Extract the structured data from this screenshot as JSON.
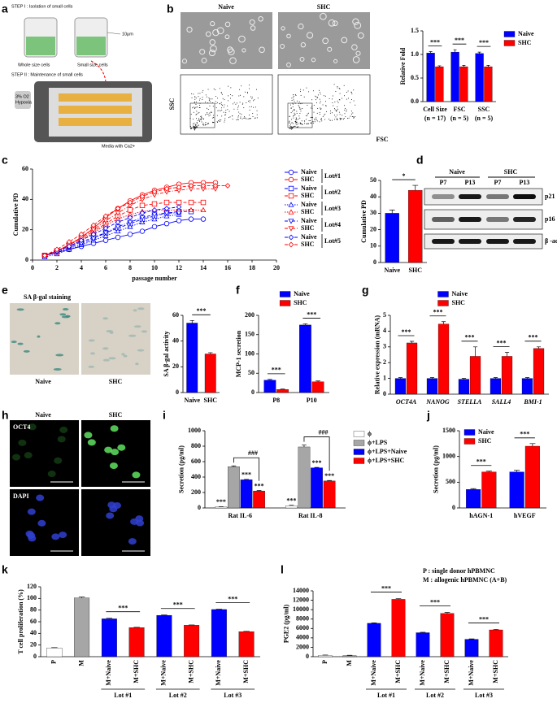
{
  "panel_labels": [
    "a",
    "b",
    "c",
    "d",
    "e",
    "f",
    "g",
    "h",
    "i",
    "j",
    "k",
    "l"
  ],
  "panel_a": {
    "step1": "STEP I : Isolation of small cells",
    "whole": "Whole size cells",
    "small": "Small size cells",
    "scale": "10μm",
    "step2": "STEP II : Maintenance of small cells",
    "o2": "3% O2",
    "hypoxia": "Hypoxia",
    "media": "Media with Ca2+"
  },
  "panel_b": {
    "naive": "Naive",
    "shc": "SHC",
    "ssc": "SSC",
    "fsc": "FSC"
  },
  "panel_d": {
    "naive": "Naive",
    "shc": "SHC",
    "passages": [
      "P7",
      "P13",
      "P7",
      "P13"
    ],
    "bands": [
      "p21",
      "p16",
      "β -actin"
    ]
  },
  "panel_e": {
    "title": "SA β-gal staining",
    "naive": "Naive",
    "shc": "SHC"
  },
  "panel_h": {
    "naive": "Naive",
    "shc": "SHC",
    "rows": [
      "OCT4",
      "DAPI"
    ]
  },
  "chart_data": [
    {
      "type": "bar",
      "categories": [
        "Cell Size",
        "FSC",
        "SSC"
      ],
      "category_sublabels": [
        "(n = 17)",
        "(n = 5)",
        "(n = 5)"
      ],
      "ylabel": "Relative Fold",
      "ylim": [
        0,
        1.5
      ],
      "yticks": [
        {
          "value": 0,
          "label": "0.0"
        },
        0.5,
        {
          "value": 1,
          "label": "1.0"
        },
        1.5
      ],
      "series": [
        {
          "name": "Naive",
          "color": "#0000ff",
          "values": [
            1.03,
            1.05,
            1.02
          ],
          "errors": [
            0.03,
            0.05,
            0.03
          ]
        },
        {
          "name": "SHC",
          "color": "#ff0000",
          "values": [
            0.74,
            0.74,
            0.74
          ],
          "errors": [
            0.02,
            0.03,
            0.03
          ]
        }
      ],
      "annotations": [
        "***",
        "***",
        "***"
      ],
      "legend": "right"
    },
    {
      "type": "line",
      "xlabel": "passage number",
      "ylabel": "Cumulative PD",
      "xlim": [
        0,
        20
      ],
      "xticks": [
        0,
        2,
        4,
        6,
        8,
        10,
        12,
        14,
        16,
        18,
        20
      ],
      "ylim": [
        0,
        60
      ],
      "yticks": [
        0,
        20,
        40,
        60
      ],
      "lot_labels": [
        "Lot#1",
        "Lot#2",
        "Lot#3",
        "Lot#4",
        "Lot#5"
      ],
      "legend": "right",
      "series": [
        {
          "name": "Naive",
          "color": "#0000ff",
          "linestyle": "solid",
          "marker": "circle",
          "x": [
            1,
            2,
            3,
            4,
            5,
            6,
            7,
            8,
            9,
            10,
            11,
            12,
            13,
            14
          ],
          "values": [
            3,
            5,
            7,
            9,
            11,
            13,
            15,
            17,
            19,
            22,
            24,
            26,
            27,
            27
          ]
        },
        {
          "name": "SHC",
          "color": "#ff0000",
          "linestyle": "solid",
          "marker": "circle",
          "x": [
            1,
            2,
            3,
            4,
            5,
            6,
            7,
            8,
            9,
            10,
            11,
            12,
            13,
            14,
            15
          ],
          "values": [
            3,
            6,
            10,
            15,
            21,
            28,
            34,
            39,
            43,
            46,
            48,
            50,
            51,
            51,
            51
          ]
        },
        {
          "name": "Naive",
          "color": "#0000ff",
          "linestyle": "dashed",
          "marker": "square",
          "x": [
            1,
            2,
            3,
            4,
            5,
            6,
            7,
            8,
            9,
            10,
            11,
            12,
            13
          ],
          "values": [
            3,
            6,
            9,
            12,
            15,
            18,
            21,
            24,
            27,
            29,
            31,
            32,
            32
          ]
        },
        {
          "name": "SHC",
          "color": "#ff0000",
          "linestyle": "dashed",
          "marker": "square",
          "x": [
            1,
            2,
            3,
            4,
            5,
            6,
            7,
            8,
            9,
            10,
            11,
            12,
            13,
            14
          ],
          "values": [
            3,
            6,
            10,
            14,
            19,
            24,
            29,
            33,
            36,
            37,
            38,
            38,
            38,
            38
          ]
        },
        {
          "name": "Naive",
          "color": "#0000ff",
          "linestyle": "dotted",
          "marker": "triangle",
          "x": [
            1,
            2,
            3,
            4,
            5,
            6,
            7,
            8,
            9,
            10,
            11,
            12
          ],
          "values": [
            2,
            4,
            7,
            10,
            13,
            16,
            19,
            22,
            25,
            27,
            29,
            30
          ]
        },
        {
          "name": "SHC",
          "color": "#ff0000",
          "linestyle": "dotted",
          "marker": "triangle",
          "x": [
            1,
            2,
            3,
            4,
            5,
            6,
            7,
            8,
            9,
            10,
            11,
            12,
            13,
            14
          ],
          "values": [
            3,
            5,
            9,
            13,
            18,
            23,
            27,
            30,
            32,
            33,
            33,
            33,
            33,
            33
          ]
        },
        {
          "name": "Naive",
          "color": "#0000ff",
          "linestyle": "dashdot",
          "marker": "triangle-down",
          "x": [
            1,
            2,
            3,
            4,
            5,
            6,
            7,
            8,
            9,
            10,
            11,
            12
          ],
          "values": [
            3,
            5,
            8,
            11,
            14,
            18,
            22,
            25,
            28,
            30,
            31,
            31
          ]
        },
        {
          "name": "SHC",
          "color": "#ff0000",
          "linestyle": "dashdot",
          "marker": "triangle-down",
          "x": [
            1,
            2,
            3,
            4,
            5,
            6,
            7,
            8,
            9,
            10,
            11,
            12,
            13,
            14,
            15
          ],
          "values": [
            3,
            6,
            10,
            15,
            20,
            26,
            31,
            36,
            40,
            43,
            45,
            46,
            47,
            47,
            47
          ]
        },
        {
          "name": "Naive",
          "color": "#0000ff",
          "linestyle": "dashed",
          "marker": "diamond",
          "x": [
            1,
            2,
            3,
            4,
            5,
            6,
            7,
            8,
            9,
            10,
            11,
            12
          ],
          "values": [
            3,
            6,
            9,
            13,
            17,
            21,
            25,
            28,
            31,
            33,
            34,
            35
          ]
        },
        {
          "name": "SHC",
          "color": "#ff0000",
          "linestyle": "dashed",
          "marker": "diamond",
          "x": [
            1,
            2,
            3,
            4,
            5,
            6,
            7,
            8,
            9,
            10,
            11,
            12,
            13,
            14,
            15,
            16
          ],
          "values": [
            3,
            7,
            12,
            17,
            23,
            29,
            34,
            38,
            42,
            45,
            47,
            48,
            49,
            49,
            49,
            49
          ]
        }
      ]
    },
    {
      "type": "bar",
      "categories": [
        "Naive",
        "SHC"
      ],
      "values": [
        30,
        44
      ],
      "errors": [
        2,
        3
      ],
      "colors": [
        "#0000ff",
        "#ff0000"
      ],
      "ylabel": "Cumulative PD",
      "ylim": [
        0,
        50
      ],
      "yticks": [
        0,
        10,
        20,
        30,
        40,
        50
      ],
      "annotation": "*"
    },
    {
      "type": "bar",
      "categories": [
        "Naive",
        "SHC"
      ],
      "values": [
        54,
        30
      ],
      "errors": [
        2,
        1
      ],
      "colors": [
        "#0000ff",
        "#ff0000"
      ],
      "ylabel": "SA β-gal activity",
      "ylim": [
        0,
        60
      ],
      "yticks": [
        0,
        20,
        40,
        60
      ],
      "annotation": "***"
    },
    {
      "type": "bar",
      "categories": [
        "P8",
        "P10"
      ],
      "ylabel": "MCP-1 secretion",
      "ylim": [
        0,
        200
      ],
      "yticks": [
        0,
        50,
        100,
        150,
        200
      ],
      "series": [
        {
          "name": "Naive",
          "color": "#0000ff",
          "values": [
            32,
            175
          ],
          "errors": [
            2,
            3
          ]
        },
        {
          "name": "SHC",
          "color": "#ff0000",
          "values": [
            8,
            28
          ],
          "errors": [
            1,
            2
          ]
        }
      ],
      "annotations": [
        "***",
        "***"
      ],
      "legend": "top"
    },
    {
      "type": "bar",
      "categories": [
        "OCT4A",
        "NANOG",
        "STELLA",
        "SALL4",
        "BMI-1"
      ],
      "category_style": "italic",
      "ylabel": "Relative expression (mRNA)",
      "ylim": [
        0,
        5
      ],
      "yticks": [
        0,
        1,
        2,
        3,
        4,
        5
      ],
      "series": [
        {
          "name": "Naive",
          "color": "#0000ff",
          "values": [
            1,
            1,
            0.95,
            1,
            1
          ],
          "errors": [
            0.05,
            0.05,
            0.05,
            0.05,
            0.05
          ]
        },
        {
          "name": "SHC",
          "color": "#ff0000",
          "values": [
            3.25,
            4.45,
            2.4,
            2.4,
            2.9
          ],
          "errors": [
            0.1,
            0.15,
            0.6,
            0.25,
            0.1
          ]
        }
      ],
      "annotations": [
        "***",
        "***",
        "***",
        "***",
        "***"
      ],
      "legend": "top"
    },
    {
      "type": "bar",
      "categories": [
        "Rat IL-6",
        "Rat IL-8"
      ],
      "ylabel": "Secretion (pg/ml)",
      "ylim": [
        0,
        1000
      ],
      "yticks": [
        0,
        200,
        400,
        600,
        800,
        1000
      ],
      "series": [
        {
          "name": "ϕ",
          "color": "#ffffff",
          "values": [
            15,
            30
          ],
          "errors": [
            3,
            5
          ],
          "annotations": [
            "***",
            "***"
          ]
        },
        {
          "name": "ϕ+LPS",
          "color": "#a6a6a6",
          "values": [
            535,
            790
          ],
          "errors": [
            10,
            25
          ]
        },
        {
          "name": "ϕ+LPS+Naive",
          "color": "#0000ff",
          "values": [
            365,
            520
          ],
          "errors": [
            5,
            5
          ],
          "annotations": [
            "***",
            "***"
          ]
        },
        {
          "name": "ϕ+LPS+SHC",
          "color": "#ff0000",
          "values": [
            220,
            350
          ],
          "errors": [
            5,
            5
          ],
          "annotations": [
            "***",
            "***"
          ]
        }
      ],
      "bracket_labels": [
        "###",
        "###"
      ],
      "legend": "right"
    },
    {
      "type": "bar",
      "categories": [
        "hAGN-1",
        "hVEGF"
      ],
      "ylabel": "Secretion (pg/ml)",
      "ylim": [
        0,
        1500
      ],
      "yticks": [
        0,
        500,
        1000,
        1500
      ],
      "series": [
        {
          "name": "Naive",
          "color": "#0000ff",
          "values": [
            360,
            700
          ],
          "errors": [
            15,
            30
          ]
        },
        {
          "name": "SHC",
          "color": "#ff0000",
          "values": [
            700,
            1200
          ],
          "errors": [
            15,
            50
          ]
        }
      ],
      "annotations": [
        "***",
        "***"
      ],
      "legend": "upper left"
    },
    {
      "type": "bar",
      "categories": [
        "P",
        "M",
        "M+Naive",
        "M+SHC",
        "M+Naive",
        "M+SHC",
        "M+Naive",
        "M+SHC"
      ],
      "values": [
        15,
        101,
        65,
        50,
        71,
        54,
        81,
        43
      ],
      "errors": [
        0.5,
        1.5,
        1,
        0.5,
        0.5,
        0.5,
        0.5,
        0.5
      ],
      "colors": [
        "#ffffff",
        "#a6a6a6",
        "#0000ff",
        "#ff0000",
        "#0000ff",
        "#ff0000",
        "#0000ff",
        "#ff0000"
      ],
      "ylabel": "T cell proliferation (%)",
      "ylim": [
        0,
        120
      ],
      "yticks": [
        0,
        20,
        40,
        60,
        80,
        100,
        120
      ],
      "xtick_rotation": -90,
      "group_labels": [
        "Lot #1",
        "Lot #2",
        "Lot #3"
      ],
      "group_annotations": [
        "***",
        "***",
        "***"
      ]
    },
    {
      "type": "bar",
      "categories": [
        "P",
        "M",
        "M+Naive",
        "M+SHC",
        "M+Naive",
        "M+SHC",
        "M+Naive",
        "M+SHC"
      ],
      "values": [
        300,
        250,
        7100,
        12200,
        5100,
        9200,
        3700,
        5700
      ],
      "errors": [
        50,
        50,
        100,
        150,
        80,
        200,
        80,
        100
      ],
      "colors": [
        "#ffffff",
        "#a6a6a6",
        "#0000ff",
        "#ff0000",
        "#0000ff",
        "#ff0000",
        "#0000ff",
        "#ff0000"
      ],
      "ylabel": "PGE2 (pg/ml)",
      "ylim": [
        0,
        14000
      ],
      "yticks": [
        0,
        2000,
        4000,
        6000,
        8000,
        10000,
        12000,
        14000
      ],
      "xtick_rotation": -90,
      "group_labels": [
        "Lot #1",
        "Lot #2",
        "Lot #3"
      ],
      "group_annotations": [
        "***",
        "***",
        "***"
      ],
      "notes": [
        "P : single donor hPBMNC",
        "M : allogenic hPBMNC (A+B)"
      ]
    }
  ]
}
